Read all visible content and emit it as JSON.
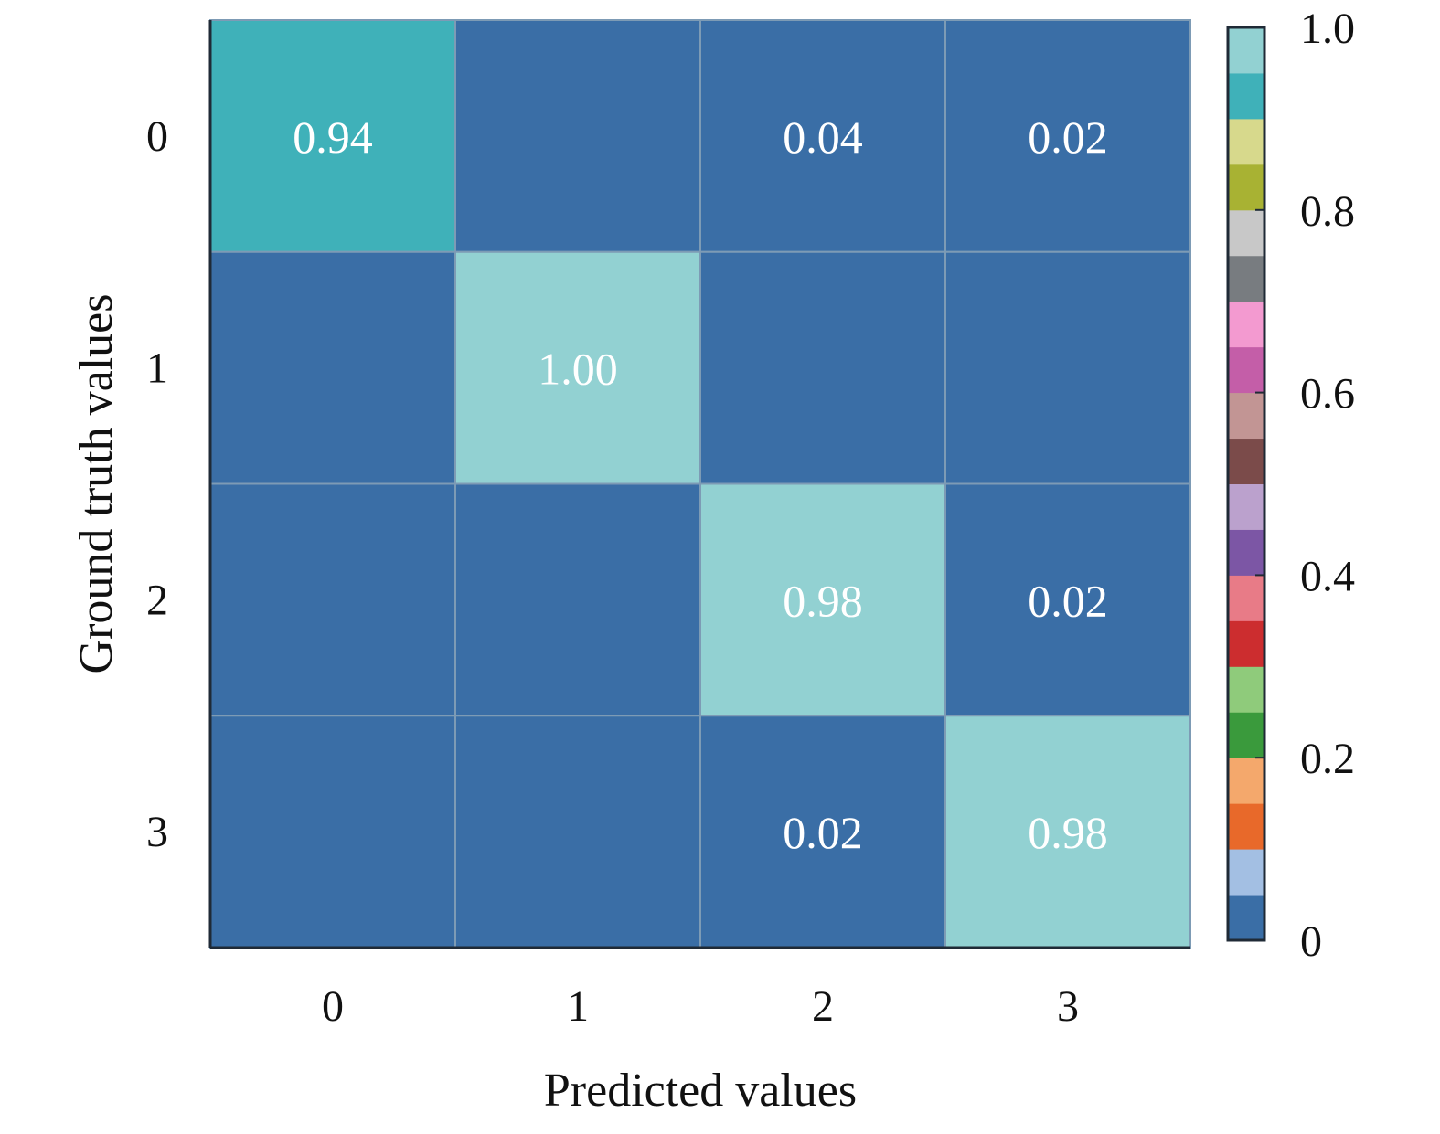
{
  "chart_data": {
    "type": "heatmap",
    "xlabel": "Predicted values",
    "ylabel": "Ground truth values",
    "x_categories": [
      "0",
      "1",
      "2",
      "3"
    ],
    "y_categories": [
      "0",
      "1",
      "2",
      "3"
    ],
    "values": [
      [
        0.94,
        0.0,
        0.04,
        0.02
      ],
      [
        0.0,
        1.0,
        0.0,
        0.0
      ],
      [
        0.0,
        0.0,
        0.98,
        0.02
      ],
      [
        0.0,
        0.0,
        0.02,
        0.98
      ]
    ],
    "cell_labels": [
      [
        "0.94",
        "",
        "0.04",
        "0.02"
      ],
      [
        "",
        "1.00",
        "",
        ""
      ],
      [
        "",
        "",
        "0.98",
        "0.02"
      ],
      [
        "",
        "",
        "0.02",
        "0.98"
      ]
    ],
    "colorbar": {
      "range": [
        0,
        1
      ],
      "ticks": [
        {
          "value": 0,
          "label": "0"
        },
        {
          "value": 0.2,
          "label": "0.2"
        },
        {
          "value": 0.4,
          "label": "0.4"
        },
        {
          "value": 0.6,
          "label": "0.6"
        },
        {
          "value": 0.8,
          "label": "0.8"
        },
        {
          "value": 1.0,
          "label": "1.0"
        }
      ],
      "colors": [
        "#3a6ea6",
        "#a3bfe3",
        "#e8692a",
        "#f4a86c",
        "#3a9a3c",
        "#8fcb7b",
        "#cc2d2f",
        "#e87b87",
        "#7c56a5",
        "#bba1cd",
        "#7b4b4a",
        "#c29594",
        "#c45ea8",
        "#f39ad0",
        "#787c80",
        "#c8c8c8",
        "#a8b233",
        "#d7d98c",
        "#3fb1b9",
        "#92d1d2"
      ]
    }
  }
}
